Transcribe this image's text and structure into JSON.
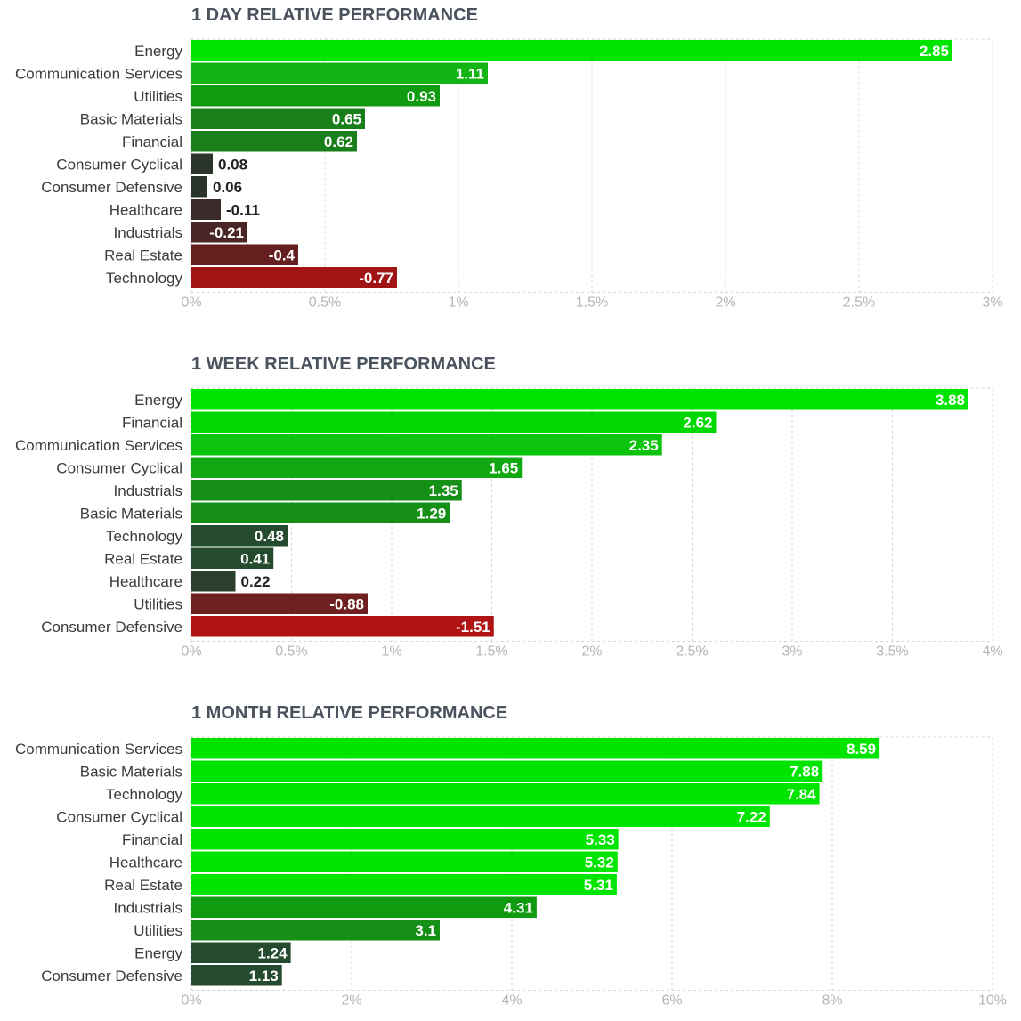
{
  "colors": {
    "strong_pos": "#00e500",
    "mid_pos": "#0ca60c",
    "weak_pos": "#1f8a1f",
    "near_zero": "#2e4a2e",
    "dark": "#2b3a2b",
    "neg_small": "#4a2a2a",
    "neg_mid": "#6e2020",
    "neg_strong": "#b01313",
    "grid": "#d6d6d6"
  },
  "chart_data": [
    {
      "type": "bar",
      "orientation": "horizontal",
      "title": "1 DAY RELATIVE PERFORMANCE",
      "categories": [
        "Energy",
        "Communication Services",
        "Utilities",
        "Basic Materials",
        "Financial",
        "Consumer Cyclical",
        "Consumer Defensive",
        "Healthcare",
        "Industrials",
        "Real Estate",
        "Technology"
      ],
      "values": [
        2.85,
        1.11,
        0.93,
        0.65,
        0.62,
        0.08,
        0.06,
        -0.11,
        -0.21,
        -0.4,
        -0.77
      ],
      "value_labels": [
        "2.85",
        "1.11",
        "0.93",
        "0.65",
        "0.62",
        "0.08",
        "0.06",
        "-0.11",
        "-0.21",
        "-0.4",
        "-0.77"
      ],
      "xlim": [
        0,
        3
      ],
      "xticks": [
        0,
        0.5,
        1,
        1.5,
        2,
        2.5,
        3
      ],
      "xtick_labels": [
        "0%",
        "0.5%",
        "1%",
        "1.5%",
        "2%",
        "2.5%",
        "3%"
      ],
      "bar_colors": [
        "#00e500",
        "#14b414",
        "#109a10",
        "#1a7f1a",
        "#1a7f1a",
        "#2b342b",
        "#2b342b",
        "#3c2a2a",
        "#4a2626",
        "#661f1f",
        "#a01414"
      ],
      "grid": true
    },
    {
      "type": "bar",
      "orientation": "horizontal",
      "title": "1 WEEK RELATIVE PERFORMANCE",
      "categories": [
        "Energy",
        "Financial",
        "Communication Services",
        "Consumer Cyclical",
        "Industrials",
        "Basic Materials",
        "Technology",
        "Real Estate",
        "Healthcare",
        "Utilities",
        "Consumer Defensive"
      ],
      "values": [
        3.88,
        2.62,
        2.35,
        1.65,
        1.35,
        1.29,
        0.48,
        0.41,
        0.22,
        -0.88,
        -1.51
      ],
      "value_labels": [
        "3.88",
        "2.62",
        "2.35",
        "1.65",
        "1.35",
        "1.29",
        "0.48",
        "0.41",
        "0.22",
        "-0.88",
        "-1.51"
      ],
      "xlim": [
        0,
        4
      ],
      "xticks": [
        0,
        0.5,
        1,
        1.5,
        2,
        2.5,
        3,
        3.5,
        4
      ],
      "xtick_labels": [
        "0%",
        "0.5%",
        "1%",
        "1.5%",
        "2%",
        "2.5%",
        "3%",
        "3.5%",
        "4%"
      ],
      "bar_colors": [
        "#00e500",
        "#00d800",
        "#0cc40c",
        "#11a811",
        "#168f16",
        "#168f16",
        "#254b2e",
        "#254b2e",
        "#2b3f2d",
        "#6e2020",
        "#b01313"
      ],
      "grid": true
    },
    {
      "type": "bar",
      "orientation": "horizontal",
      "title": "1 MONTH RELATIVE PERFORMANCE",
      "categories": [
        "Communication Services",
        "Basic Materials",
        "Technology",
        "Consumer Cyclical",
        "Financial",
        "Healthcare",
        "Real Estate",
        "Industrials",
        "Utilities",
        "Energy",
        "Consumer Defensive"
      ],
      "values": [
        8.59,
        7.88,
        7.84,
        7.22,
        5.33,
        5.32,
        5.31,
        4.31,
        3.1,
        1.24,
        1.13
      ],
      "value_labels": [
        "8.59",
        "7.88",
        "7.84",
        "7.22",
        "5.33",
        "5.32",
        "5.31",
        "4.31",
        "3.1",
        "1.24",
        "1.13"
      ],
      "xlim": [
        0,
        10
      ],
      "xticks": [
        0,
        2,
        4,
        6,
        8,
        10
      ],
      "xtick_labels": [
        "0%",
        "2%",
        "4%",
        "6%",
        "8%",
        "10%"
      ],
      "bar_colors": [
        "#00e500",
        "#00e500",
        "#00e500",
        "#00e500",
        "#00e500",
        "#00e500",
        "#00e500",
        "#109a10",
        "#168f16",
        "#254b2e",
        "#254b2e"
      ],
      "grid": true
    }
  ]
}
